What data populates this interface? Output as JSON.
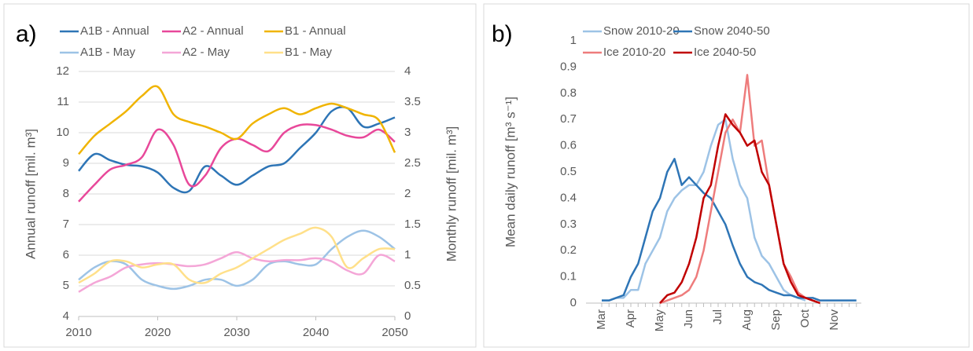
{
  "chart_data": [
    {
      "type": "line",
      "panel_label": "a)",
      "smooth": true,
      "grid": true,
      "legend": "top",
      "ylabel": "Annual runoff [mil. m³]",
      "y2label": "Monthly runoff [mil. m³]",
      "x": [
        2010,
        2012,
        2014,
        2016,
        2018,
        2020,
        2022,
        2024,
        2026,
        2028,
        2030,
        2032,
        2034,
        2036,
        2038,
        2040,
        2042,
        2044,
        2046,
        2048,
        2050
      ],
      "xlim": [
        2010,
        2050
      ],
      "xticks": [
        2010,
        2020,
        2030,
        2040,
        2050
      ],
      "ylim": [
        4,
        12
      ],
      "yticks": [
        4,
        5,
        6,
        7,
        8,
        9,
        10,
        11,
        12
      ],
      "y2lim": [
        0,
        4
      ],
      "y2ticks": [
        0,
        0.5,
        1,
        1.5,
        2,
        2.5,
        3,
        3.5,
        4
      ],
      "series": [
        {
          "name": "A1B - Annual",
          "color": "#2e75b6",
          "values": [
            8.75,
            9.3,
            9.1,
            8.95,
            8.9,
            8.7,
            8.2,
            8.1,
            8.9,
            8.6,
            8.3,
            8.6,
            8.9,
            9.0,
            9.5,
            10.0,
            10.7,
            10.8,
            10.2,
            10.3,
            10.5
          ]
        },
        {
          "name": "A2 - Annual",
          "color": "#e8489a",
          "values": [
            7.75,
            8.3,
            8.8,
            8.95,
            9.2,
            10.1,
            9.6,
            8.3,
            8.6,
            9.5,
            9.8,
            9.6,
            9.4,
            10.0,
            10.25,
            10.25,
            10.1,
            9.9,
            9.85,
            10.1,
            9.7
          ]
        },
        {
          "name": "B1 - Annual",
          "color": "#f0b400",
          "values": [
            9.3,
            9.9,
            10.3,
            10.7,
            11.2,
            11.5,
            10.6,
            10.35,
            10.2,
            10.0,
            9.8,
            10.3,
            10.6,
            10.8,
            10.6,
            10.8,
            10.95,
            10.8,
            10.6,
            10.4,
            9.35
          ]
        },
        {
          "name": "A1B - May",
          "color": "#9dc3e6",
          "axis": "y2",
          "values": [
            0.6,
            0.8,
            0.9,
            0.85,
            0.6,
            0.5,
            0.45,
            0.5,
            0.6,
            0.6,
            0.5,
            0.6,
            0.85,
            0.9,
            0.85,
            0.85,
            1.1,
            1.3,
            1.4,
            1.3,
            1.1
          ]
        },
        {
          "name": "A2 - May",
          "color": "#f4a6d7",
          "axis": "y2",
          "values": [
            0.4,
            0.55,
            0.65,
            0.8,
            0.85,
            0.87,
            0.85,
            0.82,
            0.85,
            0.95,
            1.05,
            0.95,
            0.9,
            0.92,
            0.92,
            0.95,
            0.9,
            0.75,
            0.7,
            1.0,
            0.9
          ]
        },
        {
          "name": "B1 - May",
          "color": "#ffe08a",
          "axis": "y2",
          "values": [
            0.55,
            0.7,
            0.9,
            0.9,
            0.8,
            0.85,
            0.85,
            0.6,
            0.55,
            0.7,
            0.8,
            0.95,
            1.1,
            1.25,
            1.35,
            1.45,
            1.3,
            0.8,
            0.95,
            1.1,
            1.1
          ]
        }
      ]
    },
    {
      "type": "line",
      "panel_label": "b)",
      "smooth": false,
      "grid": false,
      "legend": "top",
      "ylabel": "Mean daily runoff [m³ s⁻¹]",
      "categories": [
        "Mar",
        null,
        null,
        null,
        "Apr",
        null,
        null,
        null,
        "May",
        null,
        null,
        null,
        "Jun",
        null,
        null,
        null,
        "Jul",
        null,
        null,
        null,
        "Aug",
        null,
        null,
        null,
        "Sep",
        null,
        null,
        null,
        "Oct",
        null,
        null,
        null,
        "Nov",
        null,
        null,
        null
      ],
      "ylim": [
        0,
        1
      ],
      "yticks": [
        0,
        0.1,
        0.2,
        0.3,
        0.4,
        0.5,
        0.6,
        0.7,
        0.8,
        0.9,
        1
      ],
      "series": [
        {
          "name": "Snow 2010-20",
          "color": "#9dc3e6",
          "values": [
            0.01,
            0.01,
            0.02,
            0.02,
            0.05,
            0.05,
            0.15,
            0.2,
            0.25,
            0.35,
            0.4,
            0.43,
            0.45,
            0.45,
            0.5,
            0.6,
            0.68,
            0.7,
            0.55,
            0.45,
            0.4,
            0.25,
            0.18,
            0.15,
            0.1,
            0.05,
            0.03,
            0.02,
            0.01,
            null,
            null,
            null,
            null,
            null,
            null,
            null
          ]
        },
        {
          "name": "Snow 2040-50",
          "color": "#2e75b6",
          "values": [
            0.01,
            0.01,
            0.02,
            0.03,
            0.1,
            0.15,
            0.25,
            0.35,
            0.4,
            0.5,
            0.55,
            0.45,
            0.48,
            0.45,
            0.42,
            0.4,
            0.35,
            0.3,
            0.22,
            0.15,
            0.1,
            0.08,
            0.07,
            0.05,
            0.04,
            0.03,
            0.03,
            0.02,
            0.02,
            0.02,
            0.01,
            0.01,
            0.01,
            0.01,
            0.01,
            0.01
          ]
        },
        {
          "name": "Ice 2010-20",
          "color": "#ee7c7c",
          "values": [
            null,
            null,
            null,
            null,
            null,
            null,
            null,
            null,
            0,
            0.01,
            0.02,
            0.03,
            0.05,
            0.1,
            0.2,
            0.35,
            0.5,
            0.65,
            0.7,
            0.65,
            0.87,
            0.6,
            0.62,
            0.45,
            0.3,
            0.15,
            0.1,
            0.04,
            0.02,
            0.01,
            0,
            null,
            null,
            null,
            null,
            null
          ]
        },
        {
          "name": "Ice 2040-50",
          "color": "#c00000",
          "values": [
            null,
            null,
            null,
            null,
            null,
            null,
            null,
            null,
            0,
            0.03,
            0.04,
            0.08,
            0.15,
            0.25,
            0.4,
            0.45,
            0.6,
            0.72,
            0.68,
            0.65,
            0.6,
            0.62,
            0.5,
            0.45,
            0.3,
            0.15,
            0.08,
            0.03,
            0.02,
            0.01,
            0,
            null,
            null,
            null,
            null,
            null
          ]
        }
      ]
    }
  ]
}
